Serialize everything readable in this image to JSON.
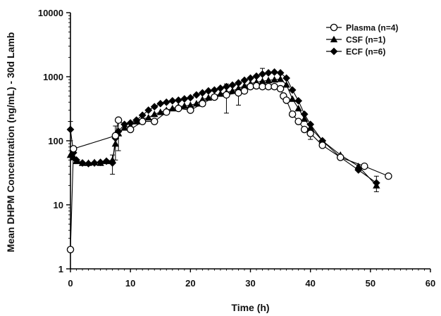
{
  "chart_data": {
    "type": "scatter",
    "xlabel": "Time (h)",
    "ylabel": "Mean DHPM Concentration (ng/mL) - 30d Lamb",
    "xlim": [
      0,
      60
    ],
    "ylim": [
      1,
      10000
    ],
    "yscale": "log",
    "x_ticks": [
      "0",
      "10",
      "20",
      "30",
      "40",
      "50",
      "60"
    ],
    "y_ticks": [
      "1",
      "10",
      "100",
      "1000",
      "10000"
    ],
    "legend_position": "top-right",
    "grid": false,
    "series": [
      {
        "name": "Plasma (n=4)",
        "marker": "open-circle",
        "color": "#000000",
        "x": [
          0,
          0.5,
          7.5,
          8,
          10,
          12,
          14,
          16,
          18,
          20,
          22,
          24,
          26,
          28,
          29,
          30,
          31,
          32,
          33,
          34,
          35,
          35.5,
          36,
          37,
          38,
          39,
          40,
          42,
          45,
          49,
          53
        ],
        "y": [
          2,
          75,
          120,
          210,
          150,
          200,
          200,
          280,
          320,
          300,
          380,
          480,
          520,
          560,
          600,
          700,
          720,
          700,
          700,
          700,
          650,
          500,
          430,
          260,
          200,
          150,
          130,
          85,
          55,
          40,
          28
        ],
        "err": [
          null,
          null,
          null,
          null,
          null,
          null,
          null,
          null,
          null,
          null,
          null,
          null,
          250,
          200,
          null,
          null,
          null,
          null,
          null,
          null,
          null,
          null,
          null,
          null,
          null,
          null,
          25,
          null,
          null,
          null,
          null
        ]
      },
      {
        "name": "CSF (n=1)",
        "marker": "filled-triangle",
        "color": "#000000",
        "x": [
          0,
          0.5,
          1,
          2,
          3,
          4,
          5,
          6,
          7,
          7.5,
          8,
          9,
          10,
          11,
          12,
          13,
          14,
          15,
          16,
          17,
          18,
          19,
          20,
          21,
          22,
          23,
          24,
          25,
          26,
          27,
          28,
          29,
          30,
          31,
          32,
          33,
          34,
          35,
          36,
          37,
          38,
          39,
          40,
          42,
          45,
          48,
          51
        ],
        "y": [
          60,
          55,
          48,
          45,
          45,
          46,
          45,
          48,
          50,
          90,
          130,
          160,
          170,
          200,
          220,
          230,
          260,
          280,
          300,
          320,
          340,
          350,
          360,
          380,
          440,
          470,
          500,
          540,
          570,
          600,
          660,
          720,
          780,
          820,
          850,
          880,
          900,
          920,
          750,
          450,
          320,
          220,
          160,
          100,
          60,
          40,
          20
        ]
      },
      {
        "name": "ECF (n=6)",
        "marker": "filled-diamond",
        "color": "#000000",
        "x": [
          0,
          0.5,
          1,
          2,
          3,
          4,
          5,
          6,
          7,
          7.5,
          8,
          9,
          10,
          11,
          12,
          13,
          14,
          15,
          16,
          17,
          18,
          19,
          20,
          21,
          22,
          23,
          24,
          25,
          26,
          27,
          28,
          29,
          30,
          31,
          32,
          33,
          34,
          35,
          36,
          37,
          38,
          39,
          40,
          42,
          45,
          48,
          51
        ],
        "y": [
          150,
          65,
          50,
          45,
          44,
          45,
          46,
          48,
          45,
          110,
          140,
          180,
          190,
          210,
          250,
          300,
          340,
          380,
          400,
          420,
          430,
          450,
          470,
          520,
          560,
          600,
          620,
          660,
          700,
          740,
          800,
          880,
          950,
          1020,
          1100,
          1150,
          1180,
          1150,
          950,
          620,
          420,
          260,
          180,
          100,
          55,
          35,
          22
        ],
        "err": [
          50,
          null,
          null,
          null,
          null,
          null,
          null,
          null,
          15,
          60,
          70,
          null,
          null,
          null,
          null,
          null,
          null,
          null,
          null,
          null,
          null,
          null,
          null,
          null,
          null,
          null,
          null,
          null,
          null,
          null,
          null,
          null,
          null,
          null,
          250,
          null,
          null,
          null,
          null,
          null,
          null,
          null,
          null,
          null,
          null,
          null,
          6
        ]
      }
    ]
  }
}
